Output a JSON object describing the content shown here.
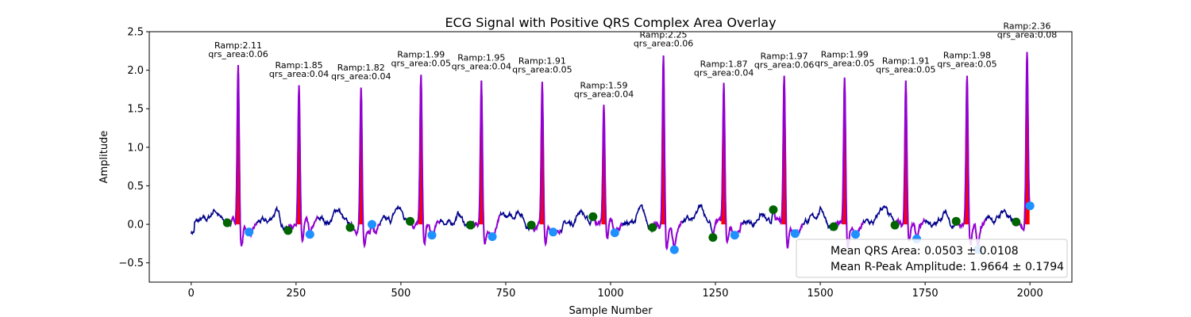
{
  "chart_data": {
    "type": "line",
    "title": "ECG Signal with Positive QRS Complex Area Overlay",
    "xlabel": "Sample Number",
    "ylabel": "Amplitude",
    "xlim": [
      -100,
      2100
    ],
    "ylim": [
      -0.75,
      2.5
    ],
    "xticks": [
      0,
      250,
      500,
      750,
      1000,
      1250,
      1500,
      1750,
      2000
    ],
    "yticks": [
      -0.5,
      0.0,
      0.5,
      1.0,
      1.5,
      2.0,
      2.5
    ],
    "xtick_labels": [
      "0",
      "250",
      "500",
      "750",
      "1000",
      "1250",
      "1500",
      "1750",
      "2000"
    ],
    "ytick_labels": [
      "−0.5",
      "0.0",
      "0.5",
      "1.0",
      "1.5",
      "2.0",
      "2.5"
    ],
    "grid": false,
    "colors": {
      "signal": "#00008b",
      "qrs": "#9400d3",
      "area": "#ff0000",
      "q_point": "#006400",
      "s_point": "#1e90ff"
    },
    "beats": [
      {
        "r_x": 112,
        "r_amp": 2.11,
        "q_x": 86,
        "q_y": 0.02,
        "s_x": 138,
        "s_y": -0.1,
        "qrs_area": 0.06,
        "ramp_label": "Ramp:2.11",
        "area_label": "qrs_area:0.06"
      },
      {
        "r_x": 257,
        "r_amp": 1.85,
        "q_x": 231,
        "q_y": -0.08,
        "s_x": 283,
        "s_y": -0.13,
        "qrs_area": 0.04,
        "ramp_label": "Ramp:1.85",
        "area_label": "qrs_area:0.04"
      },
      {
        "r_x": 405,
        "r_amp": 1.82,
        "q_x": 379,
        "q_y": -0.04,
        "s_x": 431,
        "s_y": 0.0,
        "qrs_area": 0.04,
        "ramp_label": "Ramp:1.82",
        "area_label": "qrs_area:0.04"
      },
      {
        "r_x": 548,
        "r_amp": 1.99,
        "q_x": 522,
        "q_y": 0.04,
        "s_x": 574,
        "s_y": -0.14,
        "qrs_area": 0.05,
        "ramp_label": "Ramp:1.99",
        "area_label": "qrs_area:0.05"
      },
      {
        "r_x": 692,
        "r_amp": 1.95,
        "q_x": 666,
        "q_y": -0.01,
        "s_x": 718,
        "s_y": -0.16,
        "qrs_area": 0.04,
        "ramp_label": "Ramp:1.95",
        "area_label": "qrs_area:0.04"
      },
      {
        "r_x": 837,
        "r_amp": 1.91,
        "q_x": 811,
        "q_y": -0.01,
        "s_x": 863,
        "s_y": -0.1,
        "qrs_area": 0.05,
        "ramp_label": "Ramp:1.91",
        "area_label": "qrs_area:0.05"
      },
      {
        "r_x": 984,
        "r_amp": 1.59,
        "q_x": 958,
        "q_y": 0.1,
        "s_x": 1010,
        "s_y": -0.11,
        "qrs_area": 0.04,
        "ramp_label": "Ramp:1.59",
        "area_label": "qrs_area:0.04"
      },
      {
        "r_x": 1126,
        "r_amp": 2.25,
        "q_x": 1100,
        "q_y": -0.04,
        "s_x": 1152,
        "s_y": -0.33,
        "qrs_area": 0.06,
        "ramp_label": "Ramp:2.25",
        "area_label": "qrs_area:0.06"
      },
      {
        "r_x": 1270,
        "r_amp": 1.87,
        "q_x": 1244,
        "q_y": -0.17,
        "s_x": 1296,
        "s_y": -0.14,
        "qrs_area": 0.04,
        "ramp_label": "Ramp:1.87",
        "area_label": "qrs_area:0.04"
      },
      {
        "r_x": 1414,
        "r_amp": 1.97,
        "q_x": 1388,
        "q_y": 0.19,
        "s_x": 1440,
        "s_y": -0.12,
        "qrs_area": 0.06,
        "ramp_label": "Ramp:1.97",
        "area_label": "qrs_area:0.06"
      },
      {
        "r_x": 1558,
        "r_amp": 1.99,
        "q_x": 1532,
        "q_y": -0.03,
        "s_x": 1584,
        "s_y": -0.13,
        "qrs_area": 0.05,
        "ramp_label": "Ramp:1.99",
        "area_label": "qrs_area:0.05"
      },
      {
        "r_x": 1704,
        "r_amp": 1.91,
        "q_x": 1678,
        "q_y": -0.01,
        "s_x": 1730,
        "s_y": -0.19,
        "qrs_area": 0.05,
        "ramp_label": "Ramp:1.91",
        "area_label": "qrs_area:0.05"
      },
      {
        "r_x": 1850,
        "r_amp": 1.98,
        "q_x": 1824,
        "q_y": 0.04,
        "s_x": 1876,
        "s_y": -0.33,
        "qrs_area": 0.05,
        "ramp_label": "Ramp:1.98",
        "area_label": "qrs_area:0.05"
      },
      {
        "r_x": 1993,
        "r_amp": 2.36,
        "q_x": 1967,
        "q_y": 0.03,
        "s_x": 2000,
        "s_y": 0.24,
        "qrs_area": 0.08,
        "ramp_label": "Ramp:2.36",
        "area_label": "qrs_area:0.08"
      }
    ],
    "legend": {
      "placement": "lower right",
      "entries": [
        "Mean QRS Area: 0.0503 ± 0.0108",
        "Mean R-Peak Amplitude: 1.9664 ± 0.1794"
      ]
    }
  }
}
